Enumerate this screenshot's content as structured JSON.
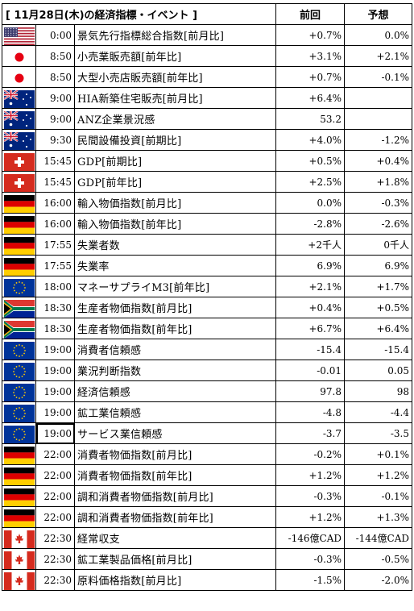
{
  "header": {
    "title": "[ 11月28日(木)の経済指標・イベント ]",
    "col_prev": "前回",
    "col_forecast": "予想"
  },
  "rows": [
    {
      "flag": "us-flag",
      "time": "0:00",
      "name": "景気先行指標総合指数[前月比]",
      "prev": "+0.7%",
      "forecast": "0.0%"
    },
    {
      "flag": "japan-flag",
      "time": "8:50",
      "name": "小売業販売額[前年比]",
      "prev": "+3.1%",
      "forecast": "+2.1%"
    },
    {
      "flag": "japan-flag",
      "time": "8:50",
      "name": "大型小売店販売額[前年比]",
      "prev": "+0.7%",
      "forecast": "-0.1%"
    },
    {
      "flag": "australia-flag",
      "time": "9:00",
      "name": "HIA新築住宅販売[前月比]",
      "prev": "+6.4%",
      "forecast": ""
    },
    {
      "flag": "australia-flag",
      "time": "9:00",
      "name": "ANZ企業景況感",
      "prev": "53.2",
      "forecast": ""
    },
    {
      "flag": "australia-flag",
      "time": "9:30",
      "name": "民間設備投資[前期比]",
      "prev": "+4.0%",
      "forecast": "-1.2%"
    },
    {
      "flag": "switzerland-flag",
      "time": "15:45",
      "name": "GDP[前期比]",
      "prev": "+0.5%",
      "forecast": "+0.4%"
    },
    {
      "flag": "switzerland-flag",
      "time": "15:45",
      "name": "GDP[前年比]",
      "prev": "+2.5%",
      "forecast": "+1.8%"
    },
    {
      "flag": "germany-flag",
      "time": "16:00",
      "name": "輸入物価指数[前月比]",
      "prev": "0.0%",
      "forecast": "-0.3%"
    },
    {
      "flag": "germany-flag",
      "time": "16:00",
      "name": "輸入物価指数[前年比]",
      "prev": "-2.8%",
      "forecast": "-2.6%"
    },
    {
      "flag": "germany-flag",
      "time": "17:55",
      "name": "失業者数",
      "prev": "+2千人",
      "forecast": "0千人"
    },
    {
      "flag": "germany-flag",
      "time": "17:55",
      "name": "失業率",
      "prev": "6.9%",
      "forecast": "6.9%"
    },
    {
      "flag": "eu-flag",
      "time": "18:00",
      "name": "マネーサプライM3[前年比]",
      "prev": "+2.1%",
      "forecast": "+1.7%"
    },
    {
      "flag": "south-africa-flag",
      "time": "18:30",
      "name": "生産者物価指数[前月比]",
      "prev": "+0.4%",
      "forecast": "+0.5%"
    },
    {
      "flag": "south-africa-flag",
      "time": "18:30",
      "name": "生産者物価指数[前年比]",
      "prev": "+6.7%",
      "forecast": "+6.4%"
    },
    {
      "flag": "eu-flag",
      "time": "19:00",
      "name": "消費者信頼感",
      "prev": "-15.4",
      "forecast": "-15.4"
    },
    {
      "flag": "eu-flag",
      "time": "19:00",
      "name": "業況判断指数",
      "prev": "-0.01",
      "forecast": "0.05"
    },
    {
      "flag": "eu-flag",
      "time": "19:00",
      "name": "経済信頼感",
      "prev": "97.8",
      "forecast": "98"
    },
    {
      "flag": "eu-flag",
      "time": "19:00",
      "name": "鉱工業信頼感",
      "prev": "-4.8",
      "forecast": "-4.4"
    },
    {
      "flag": "eu-flag",
      "time": "19:00",
      "name": "サービス業信頼感",
      "prev": "-3.7",
      "forecast": "-3.5"
    },
    {
      "flag": "germany-flag",
      "time": "22:00",
      "name": "消費者物価指数[前月比]",
      "prev": "-0.2%",
      "forecast": "+0.1%"
    },
    {
      "flag": "germany-flag",
      "time": "22:00",
      "name": "消費者物価指数[前年比]",
      "prev": "+1.2%",
      "forecast": "+1.2%"
    },
    {
      "flag": "germany-flag",
      "time": "22:00",
      "name": "調和消費者物価指数[前月比]",
      "prev": "-0.3%",
      "forecast": "-0.1%"
    },
    {
      "flag": "germany-flag",
      "time": "22:00",
      "name": "調和消費者物価指数[前年比]",
      "prev": "+1.2%",
      "forecast": "+1.3%"
    },
    {
      "flag": "canada-flag",
      "time": "22:30",
      "name": "経常収支",
      "prev": "-146億CAD",
      "forecast": "-144億CAD"
    },
    {
      "flag": "canada-flag",
      "time": "22:30",
      "name": "鉱工業製品価格[前月比]",
      "prev": "-0.3%",
      "forecast": "-0.5%"
    },
    {
      "flag": "canada-flag",
      "time": "22:30",
      "name": "原料価格指数[前月比]",
      "prev": "-1.5%",
      "forecast": "-2.0%"
    }
  ],
  "selected_row_index": 19
}
